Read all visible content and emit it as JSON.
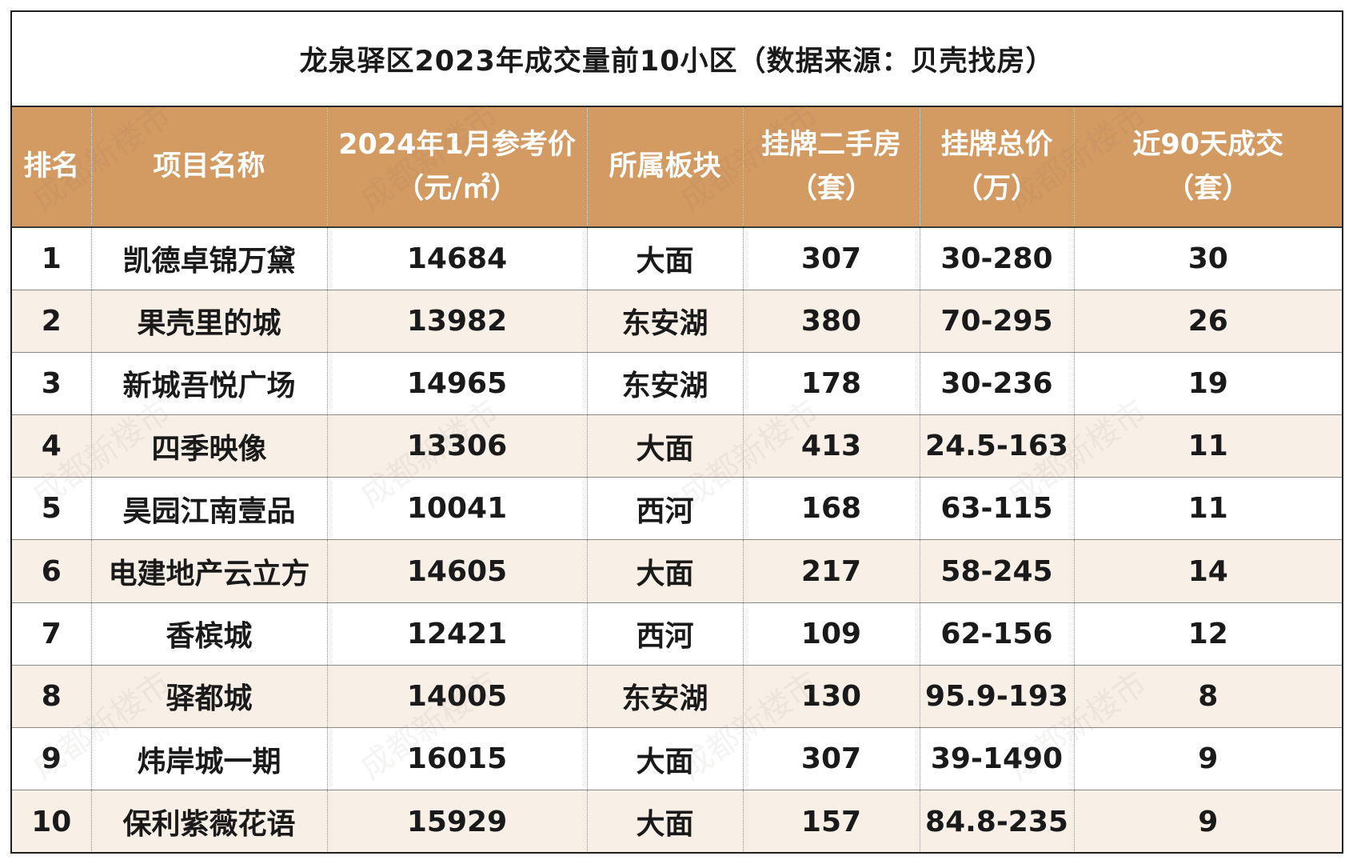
{
  "title": "龙泉驿区2023年成交量前10小区（数据来源：贝壳找房）",
  "watermark": "成都新楼市",
  "colors": {
    "header_bg": "#d39a62",
    "header_text": "#ffffff",
    "stripe": "#f8efe7",
    "border": "#1f1f1f"
  },
  "columns": [
    {
      "line1": "排名",
      "line2": ""
    },
    {
      "line1": "项目名称",
      "line2": ""
    },
    {
      "line1": "2024年1月参考价",
      "line2": "（元/㎡）"
    },
    {
      "line1": "所属板块",
      "line2": ""
    },
    {
      "line1": "挂牌二手房",
      "line2": "（套）"
    },
    {
      "line1": "挂牌总价",
      "line2": "（万）"
    },
    {
      "line1": "近90天成交",
      "line2": "（套）"
    }
  ],
  "rows": [
    [
      "1",
      "凯德卓锦万黛",
      "14684",
      "大面",
      "307",
      "30-280",
      "30"
    ],
    [
      "2",
      "果壳里的城",
      "13982",
      "东安湖",
      "380",
      "70-295",
      "26"
    ],
    [
      "3",
      "新城吾悦广场",
      "14965",
      "东安湖",
      "178",
      "30-236",
      "19"
    ],
    [
      "4",
      "四季映像",
      "13306",
      "大面",
      "413",
      "24.5-163",
      "11"
    ],
    [
      "5",
      "昊园江南壹品",
      "10041",
      "西河",
      "168",
      "63-115",
      "11"
    ],
    [
      "6",
      "电建地产云立方",
      "14605",
      "大面",
      "217",
      "58-245",
      "14"
    ],
    [
      "7",
      "香槟城",
      "12421",
      "西河",
      "109",
      "62-156",
      "12"
    ],
    [
      "8",
      "驿都城",
      "14005",
      "东安湖",
      "130",
      "95.9-193",
      "8"
    ],
    [
      "9",
      "炜岸城一期",
      "16015",
      "大面",
      "307",
      "39-1490",
      "9"
    ],
    [
      "10",
      "保利紫薇花语",
      "15929",
      "大面",
      "157",
      "84.8-235",
      "9"
    ]
  ]
}
